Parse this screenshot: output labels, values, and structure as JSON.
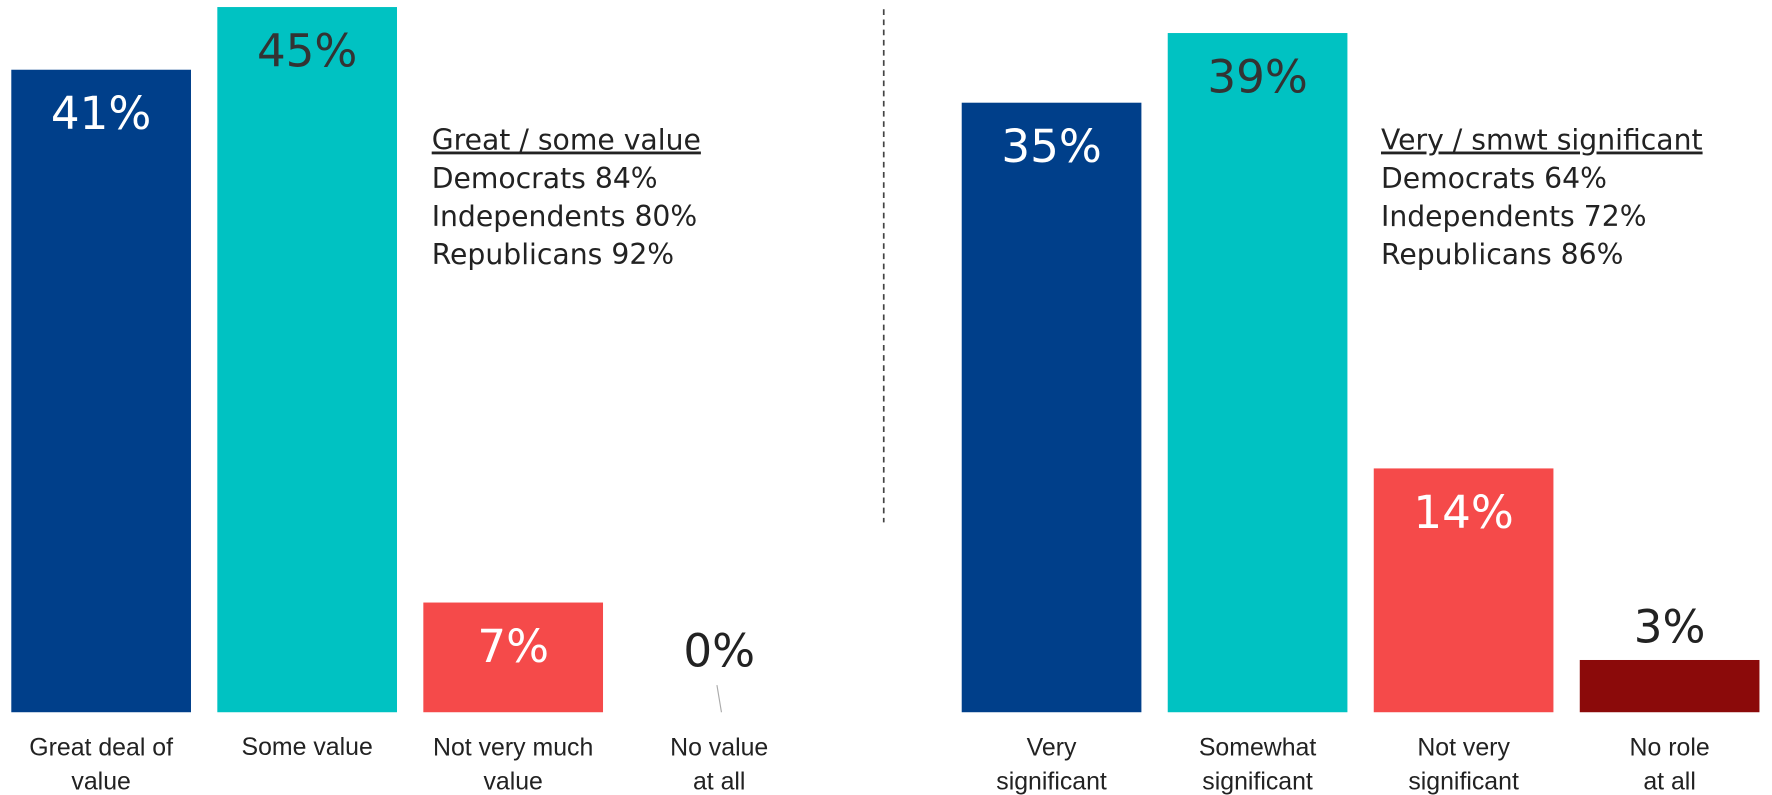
{
  "chart_data": [
    {
      "type": "bar",
      "categories": [
        "Great deal of\nvalue",
        "Some value",
        "Not very much\nvalue",
        "No value\nat all"
      ],
      "values": [
        41,
        45,
        7,
        0
      ],
      "value_labels": [
        "41%",
        "45%",
        "7%",
        "0%"
      ],
      "colors": [
        "#003f8a",
        "#00c2c2",
        "#f54a4a",
        "#8b0a0a"
      ],
      "annotation": {
        "title": "Great / some value",
        "lines": [
          "Democrats 84%",
          "Independents 80%",
          "Republicans 92%"
        ]
      }
    },
    {
      "type": "bar",
      "categories": [
        "Very\nsignificant",
        "Somewhat\nsignificant",
        "Not very\nsignificant",
        "No role\nat all"
      ],
      "values": [
        35,
        39,
        14,
        3
      ],
      "value_labels": [
        "35%",
        "39%",
        "14%",
        "3%"
      ],
      "colors": [
        "#003f8a",
        "#00c2c2",
        "#f54a4a",
        "#8b0a0a"
      ],
      "annotation": {
        "title": "Very / smwt significant",
        "lines": [
          "Democrats 64%",
          "Independents 72%",
          "Republicans 86%"
        ]
      }
    }
  ]
}
